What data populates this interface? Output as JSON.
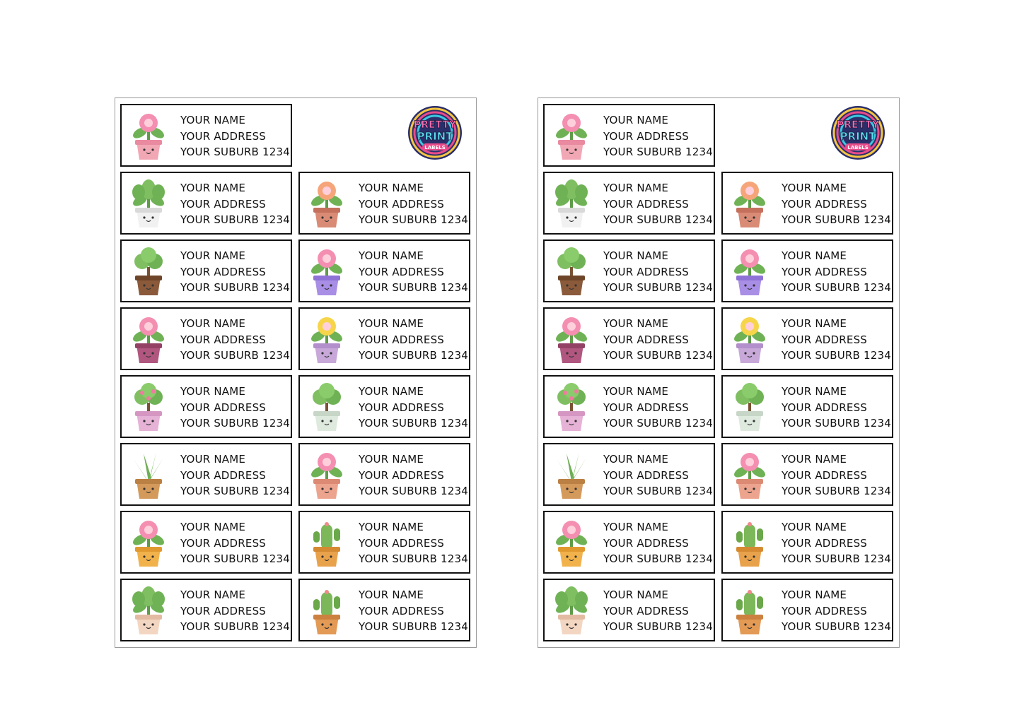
{
  "brand": {
    "logo_word1": "PRETTY",
    "logo_word2": "PRINT",
    "logo_word3": "LABELS"
  },
  "label_text": {
    "name": "YOUR NAME",
    "address": "YOUR ADDRESS",
    "suburb": "YOUR SUBURB 1234"
  },
  "sheets": [
    {
      "labels": [
        {
          "plant": "pink-rose-pot-icon"
        },
        {
          "plant": "leafy-plant-white-pot-icon"
        },
        {
          "plant": "peach-flower-pot-icon"
        },
        {
          "plant": "bonsai-tree-icon"
        },
        {
          "plant": "pink-flower-purple-pot-icon"
        },
        {
          "plant": "pink-bloom-pot-icon"
        },
        {
          "plant": "yellow-flower-pot-icon"
        },
        {
          "plant": "flowering-shrub-icon"
        },
        {
          "plant": "jade-plant-icon"
        },
        {
          "plant": "aloe-plant-icon"
        },
        {
          "plant": "pink-blossom-pot-icon"
        },
        {
          "plant": "pink-flower-yellow-pot-icon"
        },
        {
          "plant": "cactus-icon"
        },
        {
          "plant": "round-leaf-plant-icon"
        },
        {
          "plant": "round-cactus-icon"
        }
      ]
    },
    {
      "labels": [
        {
          "plant": "pink-rose-pot-icon"
        },
        {
          "plant": "leafy-plant-white-pot-icon"
        },
        {
          "plant": "peach-flower-pot-icon"
        },
        {
          "plant": "bonsai-tree-icon"
        },
        {
          "plant": "pink-flower-purple-pot-icon"
        },
        {
          "plant": "pink-bloom-pot-icon"
        },
        {
          "plant": "yellow-flower-pot-icon"
        },
        {
          "plant": "flowering-shrub-icon"
        },
        {
          "plant": "jade-plant-icon"
        },
        {
          "plant": "aloe-plant-icon"
        },
        {
          "plant": "pink-blossom-pot-icon"
        },
        {
          "plant": "pink-flower-yellow-pot-icon"
        },
        {
          "plant": "cactus-icon"
        },
        {
          "plant": "round-leaf-plant-icon"
        },
        {
          "plant": "round-cactus-icon"
        }
      ]
    }
  ],
  "colors": {
    "border": "#111111",
    "sheet_border": "#9a9a9a"
  }
}
